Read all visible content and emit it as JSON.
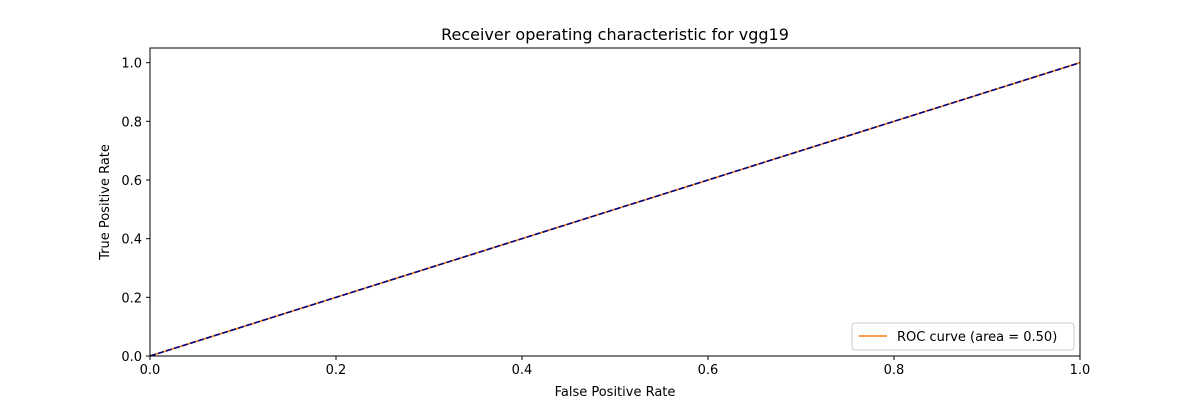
{
  "chart_data": {
    "type": "line",
    "title": "Receiver operating characteristic for vgg19",
    "xlabel": "False Positive Rate",
    "ylabel": "True Positive Rate",
    "xlim": [
      0.0,
      1.0
    ],
    "ylim": [
      0.0,
      1.05
    ],
    "xticks": [
      0.0,
      0.2,
      0.4,
      0.6,
      0.8,
      1.0
    ],
    "yticks": [
      0.0,
      0.2,
      0.4,
      0.6,
      0.8,
      1.0
    ],
    "xtick_labels": [
      "0.0",
      "0.2",
      "0.4",
      "0.6",
      "0.8",
      "1.0"
    ],
    "ytick_labels": [
      "0.0",
      "0.2",
      "0.4",
      "0.6",
      "0.8",
      "1.0"
    ],
    "grid": false,
    "legend_position": "lower-right",
    "series": [
      {
        "name": "ROC curve (area = 0.50)",
        "color": "#ff7f0e",
        "style": "solid",
        "x": [
          0.0,
          1.0
        ],
        "y": [
          0.0,
          1.0
        ]
      },
      {
        "color": "#000080",
        "style": "dashed",
        "x": [
          0.0,
          1.0
        ],
        "y": [
          0.0,
          1.0
        ]
      }
    ]
  }
}
